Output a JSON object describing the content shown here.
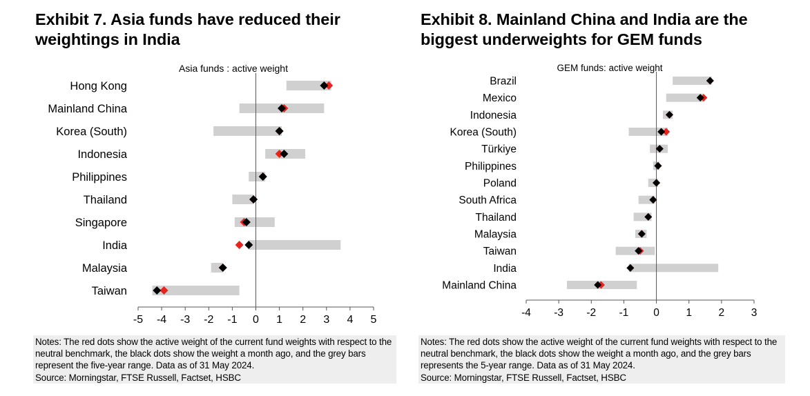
{
  "exhibits": [
    {
      "title_line1": "Exhibit 7. Asia funds have reduced their",
      "title_line2": "weightings in India",
      "notes": "Notes: The red dots show the active weight of the current fund weights with respect to the neutral benchmark, the black dots show the weight a month ago, and the grey bars represent the five-year range. Data as of 31 May 2024.",
      "source": "Source: Morningstar, FTSE Russell, Factset, HSBC"
    },
    {
      "title_line1": "Exhibit 8. Mainland China and India are the",
      "title_line2": "biggest underweights for GEM funds",
      "notes": "Notes: The red dots show the active weight of the current fund weights with respect to the neutral benchmark, the black dots show the weight a month ago, and the grey bars represents the 5-year range. Data as of 31 May 2024.",
      "source": "Source: Morningstar, FTSE Russell, Factset, HSBC"
    }
  ],
  "chart_data": [
    {
      "type": "range-dot",
      "title": "Asia funds : active weight",
      "xlim": [
        -5,
        5
      ],
      "xticks": [
        -5,
        -4,
        -3,
        -2,
        -1,
        0,
        1,
        2,
        3,
        4,
        5
      ],
      "grid": false,
      "colors": {
        "range": "#d0d0d0",
        "current": "#e8231c",
        "month_ago": "#000000"
      },
      "categories": [
        "Hong Kong",
        "Mainland China",
        "Korea (South)",
        "Indonesia",
        "Philippines",
        "Thailand",
        "Singapore",
        "India",
        "Malaysia",
        "Taiwan"
      ],
      "range_min": [
        1.3,
        -0.7,
        -1.8,
        0.4,
        -0.3,
        -1.0,
        -0.9,
        -0.3,
        -1.9,
        -4.4
      ],
      "range_max": [
        3.2,
        2.9,
        1.1,
        2.1,
        0.4,
        -0.1,
        0.8,
        3.6,
        -1.4,
        -0.7
      ],
      "current": [
        3.1,
        1.2,
        1.0,
        1.0,
        0.3,
        -0.1,
        -0.5,
        -0.7,
        -1.4,
        -3.9
      ],
      "month_ago": [
        2.9,
        1.1,
        1.0,
        1.2,
        0.3,
        -0.1,
        -0.4,
        -0.3,
        -1.4,
        -4.2
      ]
    },
    {
      "type": "range-dot",
      "title": "GEM funds: active weight",
      "xlim": [
        -4,
        3
      ],
      "xticks": [
        -4,
        -3,
        -2,
        -1,
        0,
        1,
        2,
        3
      ],
      "grid": false,
      "colors": {
        "range": "#d0d0d0",
        "current": "#e8231c",
        "month_ago": "#000000"
      },
      "categories": [
        "Brazil",
        "Mexico",
        "Indonesia",
        "Korea (South)",
        "Türkiye",
        "Philippines",
        "Poland",
        "South Africa",
        "Thailand",
        "Malaysia",
        "Taiwan",
        "India",
        "Mainland China"
      ],
      "range_min": [
        0.5,
        0.3,
        0.2,
        -0.85,
        -0.2,
        -0.1,
        -0.25,
        -0.55,
        -0.7,
        -0.65,
        -1.25,
        -0.85,
        -2.75
      ],
      "range_max": [
        1.7,
        1.45,
        0.5,
        0.35,
        0.35,
        0.1,
        0.05,
        -0.05,
        -0.15,
        -0.3,
        -0.05,
        1.9,
        -0.6
      ],
      "current": [
        1.65,
        1.45,
        0.4,
        0.3,
        0.1,
        0.05,
        0.0,
        -0.1,
        -0.25,
        -0.45,
        -0.5,
        -0.8,
        -1.7
      ],
      "month_ago": [
        1.65,
        1.35,
        0.4,
        0.15,
        0.1,
        0.05,
        0.0,
        -0.1,
        -0.25,
        -0.45,
        -0.55,
        -0.8,
        -1.8
      ]
    }
  ]
}
